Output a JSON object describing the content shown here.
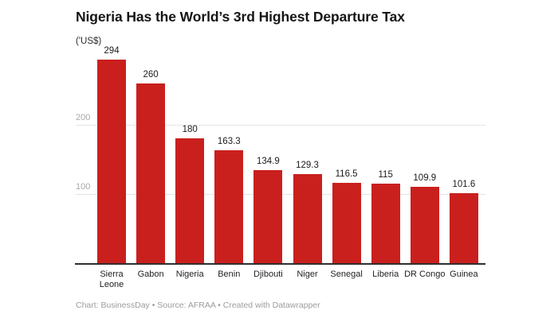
{
  "header": {
    "title": "Nigeria Has the World’s 3rd Highest Departure Tax",
    "subtitle": "('US$)"
  },
  "chart_data": {
    "type": "bar",
    "categories": [
      "Sierra Leone",
      "Gabon",
      "Nigeria",
      "Benin",
      "Djibouti",
      "Niger",
      "Senegal",
      "Liberia",
      "DR Congo",
      "Guinea"
    ],
    "values": [
      294,
      260,
      180,
      163.3,
      134.9,
      129.3,
      116.5,
      115,
      109.9,
      101.6
    ],
    "title": "Nigeria Has the World’s 3rd Highest Departure Tax",
    "xlabel": "",
    "ylabel": "('US$)",
    "yticks": [
      100,
      200
    ],
    "ylim": [
      0,
      300
    ],
    "grid": true,
    "legend": false,
    "bar_color": "#c9201e"
  },
  "colors": {
    "bar": "#c9201e",
    "grid": "#e4e4e4",
    "axis": "#2f2f2f",
    "tick_label": "#a8a8a8",
    "value_label": "#1b1b1b",
    "category_label": "#222222",
    "title": "#151515",
    "footer": "#9c9c9c"
  },
  "footer": {
    "text": "Chart: BusinessDay • Source: AFRAA • Created with Datawrapper"
  }
}
